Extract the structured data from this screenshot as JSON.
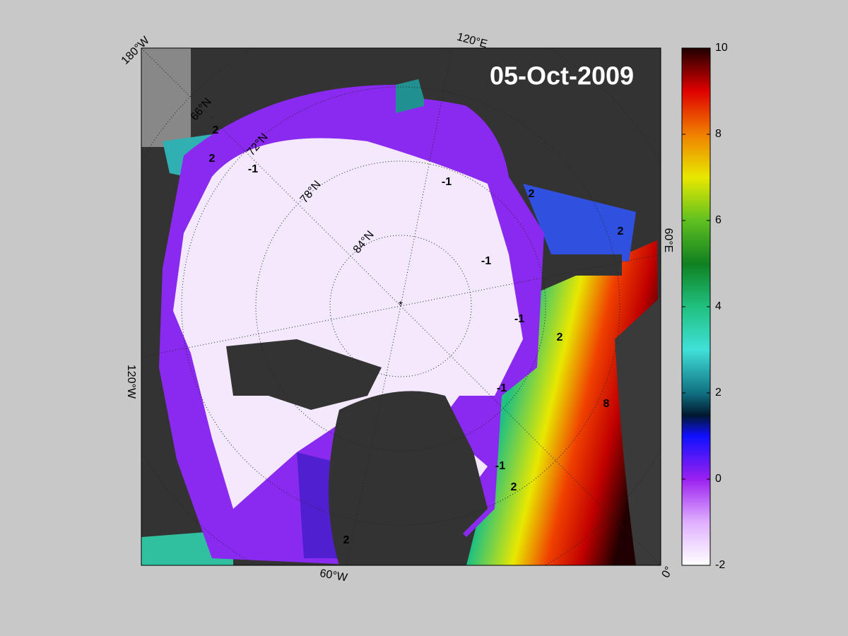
{
  "title": "05-Oct-2009",
  "colorbar": {
    "range": [
      -2,
      10
    ],
    "ticks": [
      -2,
      0,
      2,
      4,
      6,
      8,
      10
    ]
  },
  "longitude_labels": [
    "180°W",
    "120°E",
    "60°E",
    "0°",
    "60°W",
    "120°W"
  ],
  "latitude_labels": [
    "66°N",
    "72°N",
    "78°N",
    "84°N"
  ],
  "contour_labels": [
    "-1",
    "-1",
    "-1",
    "-1",
    "-1",
    "-1",
    "2",
    "2",
    "2",
    "2",
    "2",
    "2",
    "2",
    "8"
  ]
}
